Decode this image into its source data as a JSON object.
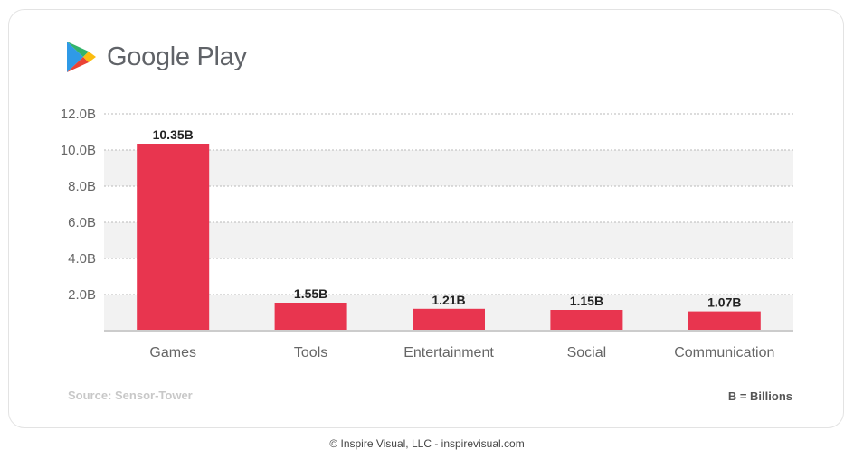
{
  "brand": {
    "name": "Google Play",
    "colors": {
      "blue": "#2f9ae7",
      "green": "#32b36b",
      "yellow": "#fbbc0f",
      "red": "#ea4335"
    }
  },
  "chart_data": {
    "type": "bar",
    "categories": [
      "Games",
      "Tools",
      "Entertainment",
      "Social",
      "Communication"
    ],
    "values": [
      10.35,
      1.55,
      1.21,
      1.15,
      1.07
    ],
    "value_labels": [
      "10.35B",
      "1.55B",
      "1.21B",
      "1.15B",
      "1.07B"
    ],
    "yticks": [
      2.0,
      4.0,
      6.0,
      8.0,
      10.0,
      12.0
    ],
    "ytick_labels": [
      "2.0B",
      "4.0B",
      "6.0B",
      "8.0B",
      "10.0B",
      "12.0B"
    ],
    "ylim": [
      0,
      12
    ],
    "grid": true,
    "bar_color": "#e8354f",
    "band_color": "#f2f2f2"
  },
  "source": "Source: Sensor-Tower",
  "unit_note": "B = Billions",
  "footer": "© Inspire Visual, LLC - inspirevisual.com"
}
